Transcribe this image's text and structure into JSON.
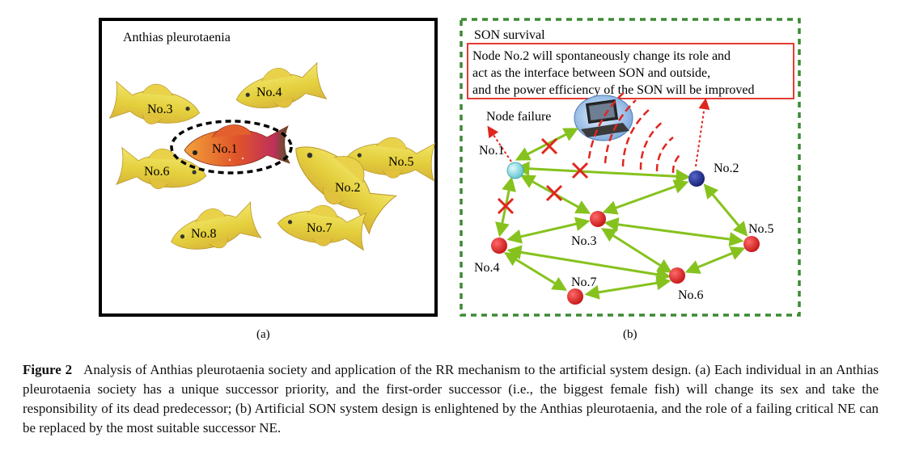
{
  "panel_a": {
    "title": "Anthias pleurotaenia",
    "label": "(a)",
    "fish": [
      {
        "label": "No.1"
      },
      {
        "label": "No.2"
      },
      {
        "label": "No.3"
      },
      {
        "label": "No.4"
      },
      {
        "label": "No.5"
      },
      {
        "label": "No.6"
      },
      {
        "label": "No.7"
      },
      {
        "label": "No.8"
      }
    ]
  },
  "panel_b": {
    "title": "SON survival",
    "label": "(b)",
    "callout_lines": [
      "Node No.2 will spontaneously change its role and",
      "act as the interface between SON and outside,",
      "and the power efficiency of the SON will be improved"
    ],
    "node_failure": "Node failure",
    "nodes": [
      {
        "label": "No.1"
      },
      {
        "label": "No.2"
      },
      {
        "label": "No.3"
      },
      {
        "label": "No.4"
      },
      {
        "label": "No.5"
      },
      {
        "label": "No.6"
      },
      {
        "label": "No.7"
      }
    ]
  },
  "colors": {
    "frame_green": "#3c8a33",
    "link_green": "#86c21e",
    "node_red": "#d81e1e",
    "node_blue": "#1f2f8f",
    "node_cyan": "#7fd6dc",
    "cross_red": "#e0261e",
    "fish_yellow": "#e8d84a"
  },
  "caption": {
    "label": "Figure 2",
    "text": "Analysis of Anthias pleurotaenia society and application of the RR mechanism to the artificial system design. (a) Each individual in an Anthias pleurotaenia society has a unique successor priority, and the first-order successor (i.e., the biggest female fish) will change its sex and take the responsibility of its dead predecessor; (b) Artificial SON system design is enlightened by the Anthias pleurotaenia, and the role of a failing critical NE can be replaced by the most suitable successor NE."
  }
}
